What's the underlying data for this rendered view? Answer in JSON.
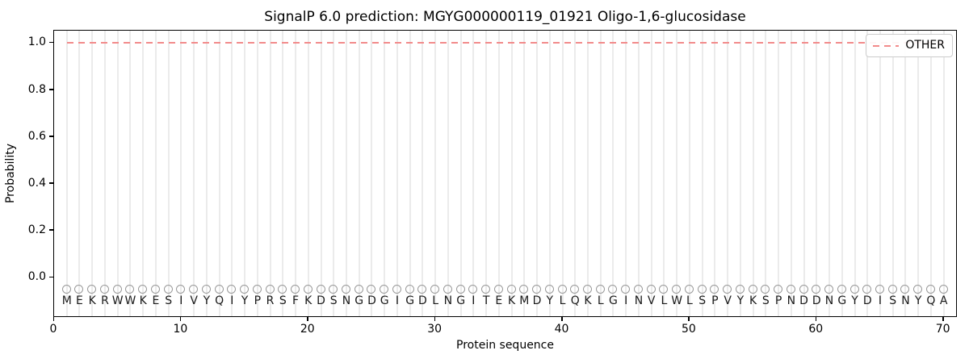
{
  "chart_data": {
    "type": "line",
    "title": "SignalP 6.0 prediction: MGYG000000119_01921 Oligo-1,6-glucosidase",
    "xlabel": "Protein sequence",
    "ylabel": "Probability",
    "xlim": [
      0,
      71.1
    ],
    "ylim": [
      -0.172,
      1.053
    ],
    "xticks": [
      0,
      10,
      20,
      30,
      40,
      50,
      60,
      70
    ],
    "yticks": [
      {
        "label": "0.0",
        "value": 0.0
      },
      {
        "label": "0.2",
        "value": 0.2
      },
      {
        "label": "0.4",
        "value": 0.4
      },
      {
        "label": "0.6",
        "value": 0.6
      },
      {
        "label": "0.8",
        "value": 0.8
      },
      {
        "label": "1.0",
        "value": 1.0
      }
    ],
    "grid": {
      "vertical_per_residue": true,
      "horizontal": false
    },
    "legend": {
      "position": "upper-right",
      "entries": [
        {
          "label": "OTHER",
          "color": "#f28b8b",
          "style": "dashed"
        }
      ]
    },
    "series": [
      {
        "name": "OTHER",
        "style": "dashed",
        "color": "#f28b8b",
        "x_start": 1,
        "x_end": 70,
        "constant_y": 1.0
      }
    ],
    "sequence": "MEKRWWKESIVYQIYPRSFKDSNGDGIGDLNGITEKMDYLQKLGINVLWLSPVYKSPNDDNGYDISNYQA",
    "sequence_length": 70,
    "marker": {
      "shape": "circle-outline",
      "edge_color": "#999999",
      "y": -0.05
    },
    "letter_y": -0.1,
    "colors": {
      "grid": "#ebebeb",
      "spine": "#000000",
      "letters": "#1a1a1a",
      "background": "#ffffff"
    }
  }
}
